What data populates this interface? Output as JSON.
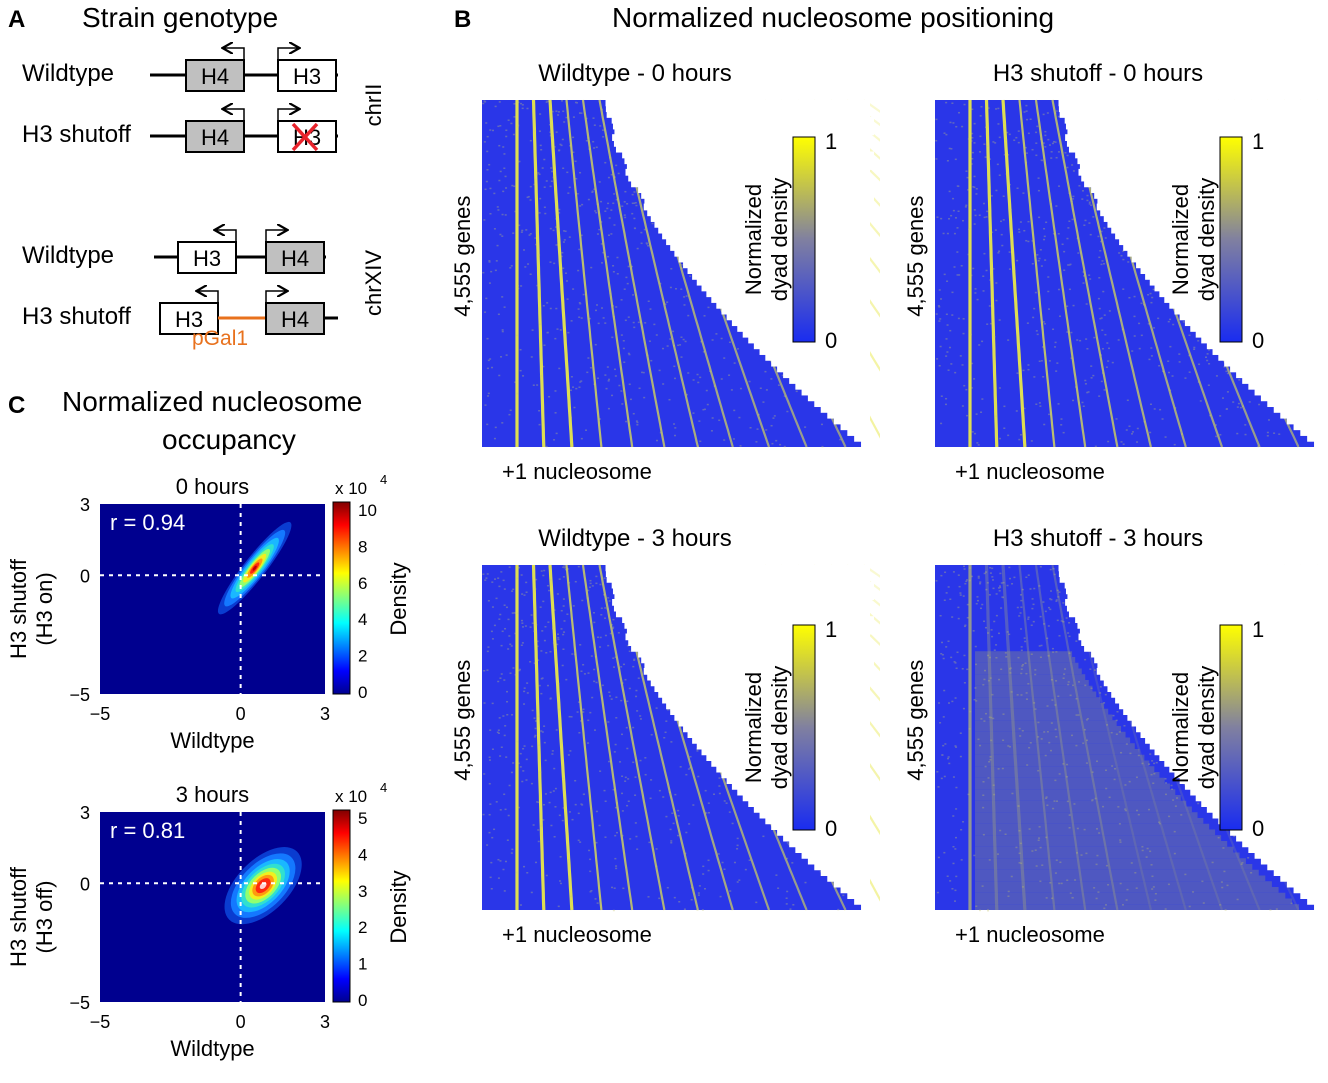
{
  "panel_a": {
    "letter": "A",
    "title": "Strain genotype",
    "chr2": {
      "label": "chrII",
      "rows": [
        {
          "strain": "Wildtype",
          "left_gene": "H4",
          "right_gene": "H3"
        },
        {
          "strain": "H3 shutoff",
          "left_gene": "H4",
          "right_gene": "H3"
        }
      ]
    },
    "chr14": {
      "label": "chrXIV",
      "rows": [
        {
          "strain": "Wildtype",
          "left_gene": "H3",
          "right_gene": "H4"
        },
        {
          "strain": "H3 shutoff",
          "left_gene": "H3",
          "right_gene": "H4"
        }
      ],
      "promoter_label": "pGal1"
    },
    "colors": {
      "shaded_gene": "#c0c0c0",
      "promoter": "#e8711d",
      "deletion_x": "#e8232c"
    }
  },
  "panel_b": {
    "letter": "B",
    "title": "Normalized nucleosome positioning",
    "heatmaps": [
      {
        "title": "Wildtype - 0 hours",
        "ylabel": "4,555 genes",
        "xlabel": "+1 nucleosome",
        "cb_label_1": "Normalized",
        "cb_label_2": "dyad density",
        "cb_max": "1",
        "cb_min": "0"
      },
      {
        "title": "H3 shutoff - 0 hours",
        "ylabel": "4,555 genes",
        "xlabel": "+1 nucleosome",
        "cb_label_1": "Normalized",
        "cb_label_2": "dyad density",
        "cb_max": "1",
        "cb_min": "0"
      },
      {
        "title": "Wildtype - 3 hours",
        "ylabel": "4,555 genes",
        "xlabel": "+1 nucleosome",
        "cb_label_1": "Normalized",
        "cb_label_2": "dyad density",
        "cb_max": "1",
        "cb_min": "0"
      },
      {
        "title": "H3 shutoff - 3 hours",
        "ylabel": "4,555 genes",
        "xlabel": "+1 nucleosome",
        "cb_label_1": "Normalized",
        "cb_label_2": "dyad density",
        "cb_max": "1",
        "cb_min": "0"
      }
    ],
    "colors": {
      "low": "#1a2cf0",
      "high": "#ffff00"
    }
  },
  "panel_c": {
    "letter": "C",
    "title_line1": "Normalized nucleosome",
    "title_line2": "occupancy",
    "charts": [
      {
        "title": "0 hours",
        "r_label": "r  = 0.94",
        "ylabel1": "H3 shutoff",
        "ylabel2": "(H3 on)",
        "xlabel": "Wildtype",
        "xticks": [
          "−5",
          "0",
          "3"
        ],
        "yticks": [
          "3",
          "0",
          "−5"
        ],
        "cb_exp_base": "x 10",
        "cb_exp": "4",
        "cb_ticks": [
          "10",
          "8",
          "6",
          "4",
          "2",
          "0"
        ],
        "cb_label": "Density"
      },
      {
        "title": "3 hours",
        "r_label": "r  = 0.81",
        "ylabel1": "H3 shutoff",
        "ylabel2": "(H3 off)",
        "xlabel": "Wildtype",
        "xticks": [
          "−5",
          "0",
          "3"
        ],
        "yticks": [
          "3",
          "0",
          "−5"
        ],
        "cb_exp_base": "x 10",
        "cb_exp": "4",
        "cb_ticks": [
          "5",
          "4",
          "3",
          "2",
          "1",
          "0"
        ],
        "cb_label": "Density"
      }
    ]
  },
  "chart_data": [
    {
      "type": "heatmap",
      "title": "Wildtype - 0 hours",
      "ylabel": "4,555 genes",
      "xlabel": "+1 nucleosome",
      "colorbar_label": "Normalized dyad density",
      "colorbar_range": [
        0,
        1
      ]
    },
    {
      "type": "heatmap",
      "title": "H3 shutoff - 0 hours",
      "ylabel": "4,555 genes",
      "xlabel": "+1 nucleosome",
      "colorbar_label": "Normalized dyad density",
      "colorbar_range": [
        0,
        1
      ]
    },
    {
      "type": "heatmap",
      "title": "Wildtype - 3 hours",
      "ylabel": "4,555 genes",
      "xlabel": "+1 nucleosome",
      "colorbar_label": "Normalized dyad density",
      "colorbar_range": [
        0,
        1
      ]
    },
    {
      "type": "heatmap",
      "title": "H3 shutoff - 3 hours",
      "ylabel": "4,555 genes",
      "xlabel": "+1 nucleosome",
      "colorbar_label": "Normalized dyad density",
      "colorbar_range": [
        0,
        1
      ]
    },
    {
      "type": "heatmap",
      "title": "0 hours",
      "xlabel": "Wildtype",
      "ylabel": "H3 shutoff (H3 on)",
      "xlim": [
        -5,
        3
      ],
      "ylim": [
        -5,
        3
      ],
      "correlation_r": 0.94,
      "colorbar_label": "Density",
      "colorbar_range": [
        0,
        100000
      ],
      "density_peak": [
        0.5,
        0.3
      ]
    },
    {
      "type": "heatmap",
      "title": "3 hours",
      "xlabel": "Wildtype",
      "ylabel": "H3 shutoff (H3 off)",
      "xlim": [
        -5,
        3
      ],
      "ylim": [
        -5,
        3
      ],
      "correlation_r": 0.81,
      "colorbar_label": "Density",
      "colorbar_range": [
        0,
        50000
      ],
      "density_peak": [
        0.8,
        -0.1
      ]
    }
  ]
}
